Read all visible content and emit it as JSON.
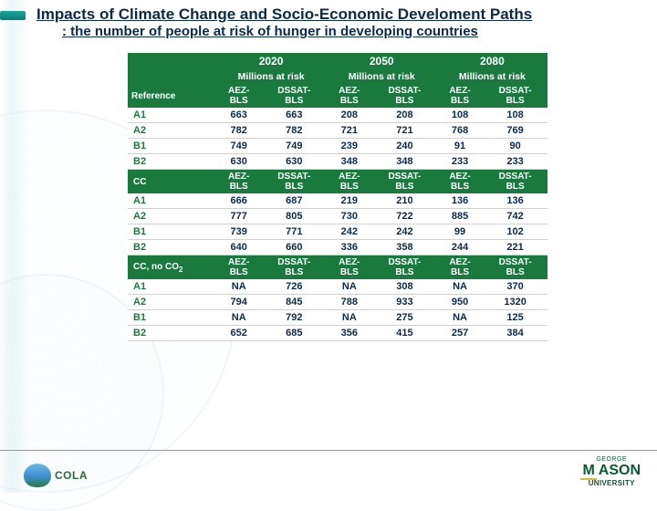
{
  "title": {
    "line1": "Impacts of Climate Change and Socio-Economic Develoment Paths",
    "line2": ": the number of people at risk of hunger in developing countries"
  },
  "table": {
    "years": [
      "2020",
      "2050",
      "2080"
    ],
    "sub_label": "Millions at risk",
    "col_headers": [
      "AEZ-BLS",
      "DSSAT-BLS",
      "AEZ-BLS",
      "DSSAT-BLS",
      "AEZ-BLS",
      "DSSAT-BLS"
    ],
    "reference_label": "Reference",
    "sections": [
      {
        "label": "Reference",
        "is_header": true,
        "rows": [
          {
            "label": "A1",
            "vals": [
              "663",
              "663",
              "208",
              "208",
              "108",
              "108"
            ]
          },
          {
            "label": "A2",
            "vals": [
              "782",
              "782",
              "721",
              "721",
              "768",
              "769"
            ]
          },
          {
            "label": "B1",
            "vals": [
              "749",
              "749",
              "239",
              "240",
              "91",
              "90"
            ]
          },
          {
            "label": "B2",
            "vals": [
              "630",
              "630",
              "348",
              "348",
              "233",
              "233"
            ]
          }
        ]
      },
      {
        "label": "CC",
        "rows": [
          {
            "label": "A1",
            "vals": [
              "666",
              "687",
              "219",
              "210",
              "136",
              "136"
            ]
          },
          {
            "label": "A2",
            "vals": [
              "777",
              "805",
              "730",
              "722",
              "885",
              "742"
            ]
          },
          {
            "label": "B1",
            "vals": [
              "739",
              "771",
              "242",
              "242",
              "99",
              "102"
            ]
          },
          {
            "label": "B2",
            "vals": [
              "640",
              "660",
              "336",
              "358",
              "244",
              "221"
            ]
          }
        ]
      },
      {
        "label": "CC, no CO₂",
        "rows": [
          {
            "label": "A1",
            "vals": [
              "NA",
              "726",
              "NA",
              "308",
              "NA",
              "370"
            ]
          },
          {
            "label": "A2",
            "vals": [
              "794",
              "845",
              "788",
              "933",
              "950",
              "1320"
            ]
          },
          {
            "label": "B1",
            "vals": [
              "NA",
              "792",
              "NA",
              "275",
              "NA",
              "125"
            ]
          },
          {
            "label": "B2",
            "vals": [
              "652",
              "685",
              "356",
              "415",
              "257",
              "384"
            ]
          }
        ]
      }
    ]
  },
  "colors": {
    "header_bg": "#1a7a3e",
    "header_fg": "#ffffff",
    "row_label": "#1a7a3e",
    "value_fg": "#0b2a4a",
    "title_fg": "#0b2a4a"
  },
  "logos": {
    "left_text": "COLA",
    "right_mark": "M",
    "right_line1": "GEORGE",
    "right_line2": "UNIVERSITY",
    "right_name": "ASON"
  }
}
